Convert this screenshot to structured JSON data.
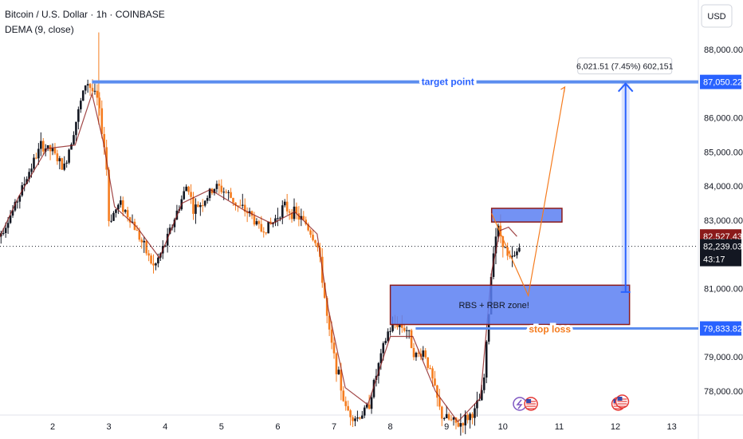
{
  "header": {
    "symbol_line": "Bitcoin / U.S. Dollar · 1h · COINBASE",
    "indicator_line": "DEMA (9, close)"
  },
  "currency_button": "USD",
  "chart_data": {
    "type": "candlestick",
    "y_range": [
      77400,
      88700
    ],
    "x_range": [
      1.0,
      13.9
    ],
    "y_ticks": [
      {
        "value": 88000,
        "label": "88,000.00"
      },
      {
        "value": 86000,
        "label": "86,000.00"
      },
      {
        "value": 85000,
        "label": "85,000.00"
      },
      {
        "value": 84000,
        "label": "84,000.00"
      },
      {
        "value": 83000,
        "label": "83,000.00"
      },
      {
        "value": 81000,
        "label": "81,000.00"
      },
      {
        "value": 79000,
        "label": "79,000.00"
      },
      {
        "value": 78000,
        "label": "78,000.00"
      }
    ],
    "x_ticks": [
      {
        "value": 2,
        "label": "2"
      },
      {
        "value": 3,
        "label": "3"
      },
      {
        "value": 4,
        "label": "4"
      },
      {
        "value": 5,
        "label": "5"
      },
      {
        "value": 6,
        "label": "6"
      },
      {
        "value": 7,
        "label": "7"
      },
      {
        "value": 8,
        "label": "8"
      },
      {
        "value": 9,
        "label": "9"
      },
      {
        "value": 10,
        "label": "10"
      },
      {
        "value": 11,
        "label": "11"
      },
      {
        "value": 12,
        "label": "12"
      },
      {
        "value": 13,
        "label": "13"
      }
    ],
    "price_path": [
      [
        1.0,
        82400
      ],
      [
        1.3,
        83300
      ],
      [
        1.6,
        84500
      ],
      [
        1.8,
        85200
      ],
      [
        2.0,
        85000
      ],
      [
        2.2,
        84500
      ],
      [
        2.4,
        85800
      ],
      [
        2.6,
        87100
      ],
      [
        2.8,
        86500
      ],
      [
        2.95,
        84800
      ],
      [
        3.0,
        83000
      ],
      [
        3.2,
        83500
      ],
      [
        3.4,
        83000
      ],
      [
        3.6,
        82300
      ],
      [
        3.8,
        81600
      ],
      [
        4.0,
        82300
      ],
      [
        4.2,
        83200
      ],
      [
        4.4,
        84100
      ],
      [
        4.5,
        83300
      ],
      [
        4.7,
        83600
      ],
      [
        4.9,
        84000
      ],
      [
        5.1,
        83800
      ],
      [
        5.3,
        83400
      ],
      [
        5.5,
        83200
      ],
      [
        5.7,
        82700
      ],
      [
        5.9,
        82900
      ],
      [
        6.1,
        83400
      ],
      [
        6.3,
        83200
      ],
      [
        6.5,
        82900
      ],
      [
        6.7,
        82300
      ],
      [
        6.8,
        81200
      ],
      [
        6.9,
        79800
      ],
      [
        7.0,
        79000
      ],
      [
        7.1,
        78300
      ],
      [
        7.2,
        77500
      ],
      [
        7.4,
        77200
      ],
      [
        7.6,
        77500
      ],
      [
        7.8,
        78800
      ],
      [
        7.95,
        79700
      ],
      [
        8.1,
        80000
      ],
      [
        8.3,
        79800
      ],
      [
        8.45,
        79000
      ],
      [
        8.6,
        79200
      ],
      [
        8.75,
        78300
      ],
      [
        8.9,
        77300
      ],
      [
        9.2,
        77000
      ],
      [
        9.5,
        77400
      ],
      [
        9.65,
        78000
      ],
      [
        9.75,
        80300
      ],
      [
        9.82,
        82100
      ],
      [
        9.9,
        82800
      ],
      [
        10.0,
        82400
      ],
      [
        10.1,
        81800
      ],
      [
        10.2,
        81900
      ],
      [
        10.3,
        82239
      ]
    ],
    "dema_path": [
      [
        1.0,
        82300
      ],
      [
        1.4,
        83700
      ],
      [
        1.9,
        85100
      ],
      [
        2.4,
        85200
      ],
      [
        2.7,
        86700
      ],
      [
        2.9,
        85300
      ],
      [
        3.1,
        83400
      ],
      [
        3.5,
        82800
      ],
      [
        3.9,
        81900
      ],
      [
        4.3,
        83500
      ],
      [
        4.8,
        83900
      ],
      [
        5.4,
        83300
      ],
      [
        5.9,
        82900
      ],
      [
        6.3,
        83250
      ],
      [
        6.7,
        82600
      ],
      [
        6.9,
        80400
      ],
      [
        7.2,
        78100
      ],
      [
        7.6,
        77600
      ],
      [
        8.0,
        79600
      ],
      [
        8.4,
        79600
      ],
      [
        8.8,
        78000
      ],
      [
        9.2,
        77100
      ],
      [
        9.6,
        77800
      ],
      [
        9.8,
        81500
      ],
      [
        9.95,
        82700
      ],
      [
        10.1,
        82800
      ],
      [
        10.25,
        82527
      ]
    ],
    "target_point": {
      "price": 87050.22,
      "label": "target point",
      "price_label": "87,050.22"
    },
    "stop_loss": {
      "price": 79833.82,
      "label": "stop loss",
      "price_label": "79,833.82"
    },
    "last_price": {
      "price": 82239.03,
      "price_label": "82,239.03",
      "countdown": "43:17"
    },
    "dema_value": {
      "price": 82527.43,
      "price_label": "82,527.43"
    },
    "zone_large": {
      "x": [
        8.0,
        12.25
      ],
      "y": [
        79950,
        81100
      ],
      "label": "RBS + RBR zone!"
    },
    "zone_small": {
      "x": [
        9.8,
        11.05
      ],
      "y": [
        82950,
        83350
      ]
    },
    "projection_path": [
      [
        9.8,
        83200
      ],
      [
        10.45,
        80800
      ],
      [
        10.7,
        83100
      ],
      [
        11.1,
        86900
      ]
    ],
    "measure": {
      "x": 12.18,
      "from": 80900,
      "to": 87050,
      "label": "6,021.51 (7.45%) 602,151"
    }
  }
}
